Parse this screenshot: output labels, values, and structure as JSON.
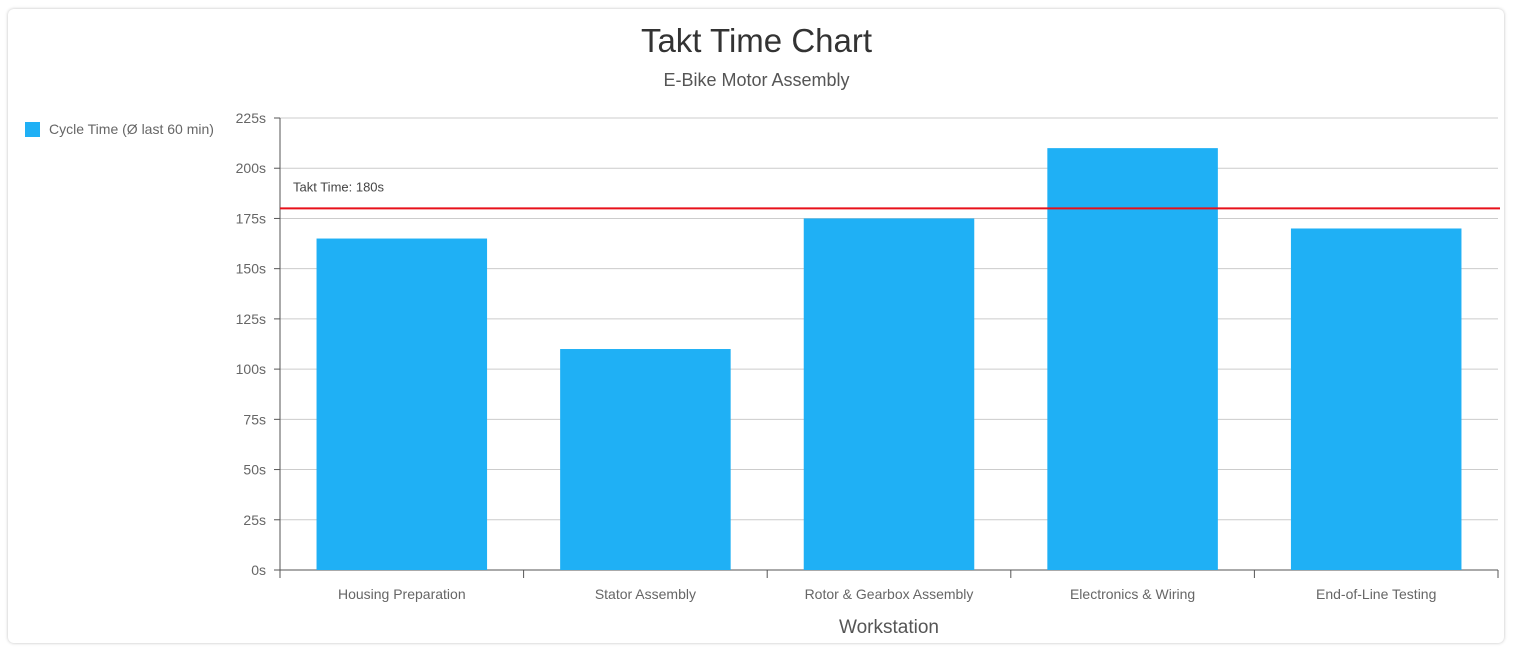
{
  "header": {
    "title": "Takt Time Chart",
    "subtitle": "E-Bike Motor Assembly"
  },
  "legend": {
    "label": "Cycle Time (Ø last 60 min)",
    "position": "left"
  },
  "colors": {
    "bar": "#1fb0f5",
    "takt_line": "#e8101a",
    "grid": "#cccccc",
    "axis": "#555555",
    "tick_text": "#666666"
  },
  "takt": {
    "value": 180,
    "label": "Takt Time: 180s"
  },
  "chart_data": {
    "type": "bar",
    "title": "Takt Time Chart",
    "subtitle": "E-Bike Motor Assembly",
    "xlabel": "Workstation",
    "ylabel": "",
    "categories": [
      "Housing Preparation",
      "Stator Assembly",
      "Rotor & Gearbox Assembly",
      "Electronics & Wiring",
      "End-of-Line Testing"
    ],
    "series": [
      {
        "name": "Cycle Time (Ø last 60 min)",
        "values": [
          165,
          110,
          175,
          210,
          170
        ]
      }
    ],
    "ylim": [
      0,
      225
    ],
    "yticks": [
      0,
      25,
      50,
      75,
      100,
      125,
      150,
      175,
      200,
      225
    ],
    "ytick_labels": [
      "0s",
      "25s",
      "50s",
      "75s",
      "100s",
      "125s",
      "150s",
      "175s",
      "200s",
      "225s"
    ],
    "grid": true,
    "legend_placement": "left",
    "reference_line": {
      "value": 180,
      "label": "Takt Time: 180s"
    }
  }
}
